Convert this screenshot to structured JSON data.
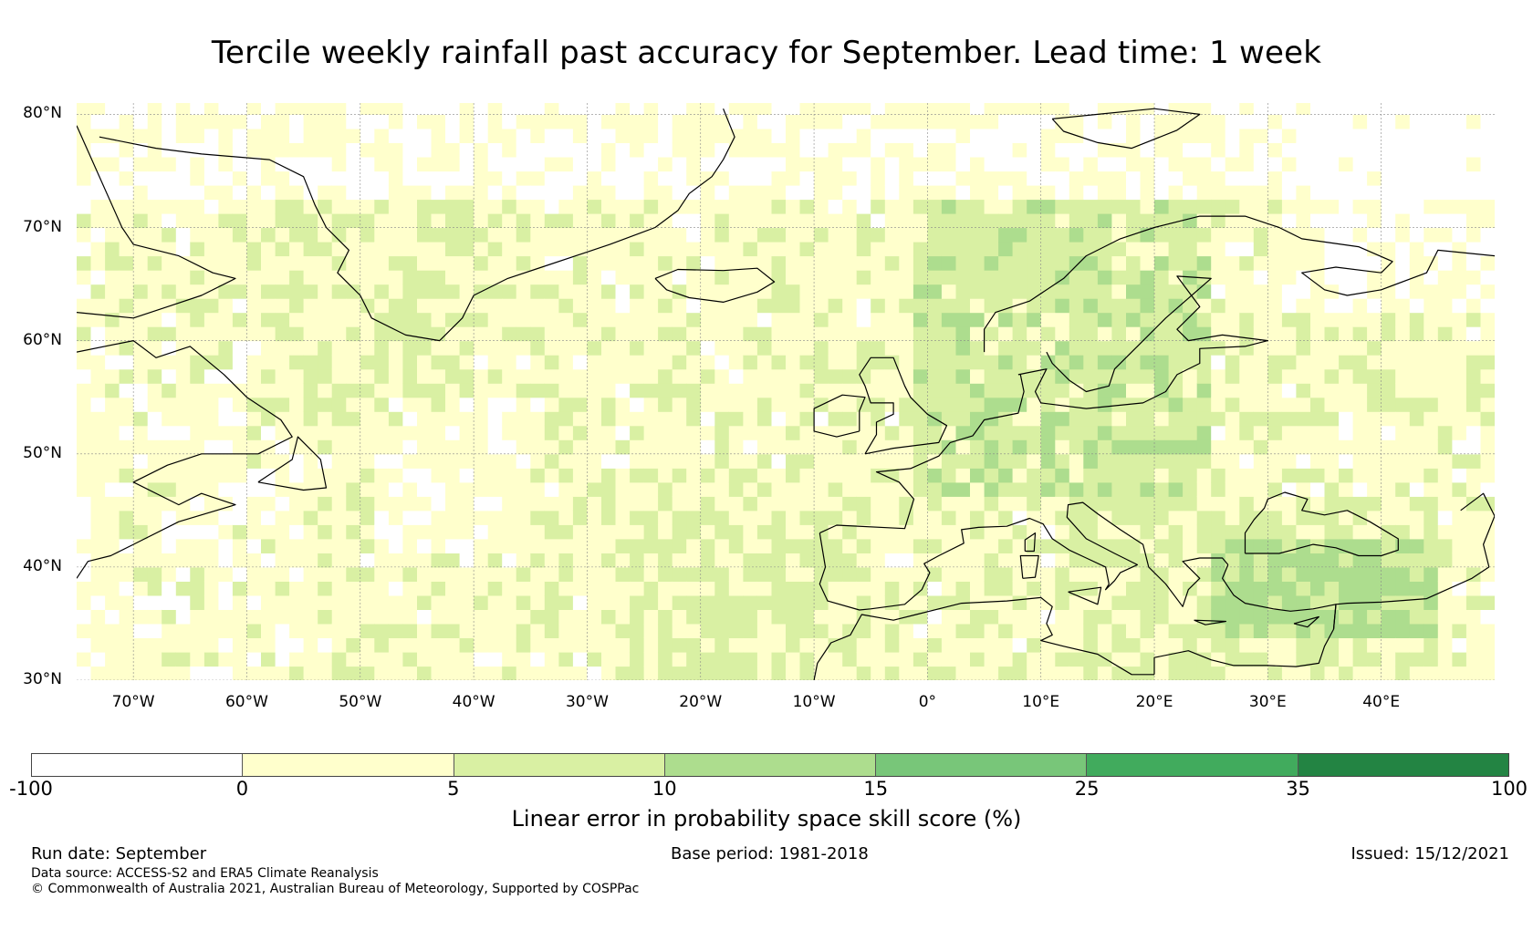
{
  "title": "Tercile weekly rainfall past accuracy for September. Lead time: 1 week",
  "map": {
    "lat_range": [
      30,
      81
    ],
    "lon_range": [
      -75,
      50
    ],
    "lat_labels": [
      "80°N",
      "70°N",
      "60°N",
      "50°N",
      "40°N",
      "30°N"
    ],
    "lat_values": [
      80,
      70,
      60,
      50,
      40,
      30
    ],
    "lon_labels": [
      "70°W",
      "60°W",
      "50°W",
      "40°W",
      "30°W",
      "20°W",
      "10°W",
      "0°",
      "10°E",
      "20°E",
      "30°E",
      "40°E"
    ],
    "lon_values": [
      -70,
      -60,
      -50,
      -40,
      -30,
      -20,
      -10,
      0,
      10,
      20,
      30,
      40
    ],
    "coastline_color": "#000000",
    "grid_color": "#888888"
  },
  "colorbar": {
    "title": "Linear error in probability space skill score (%)",
    "ticks": [
      "-100",
      "0",
      "5",
      "10",
      "15",
      "25",
      "35",
      "100"
    ],
    "colors": [
      "#ffffff",
      "#ffffcc",
      "#d9f0a3",
      "#addd8e",
      "#78c679",
      "#41ab5d",
      "#238443"
    ]
  },
  "footer": {
    "run_date": "Run date: September",
    "base_period": "Base period: 1981-2018",
    "issued": "Issued: 15/12/2021",
    "data_source": "Data source: ACCESS-S2 and ERA5 Climate Reanalysis",
    "copyright": "© Commonwealth of Australia 2021, Australian Bureau of Meteorology, Supported by COSPPac"
  }
}
